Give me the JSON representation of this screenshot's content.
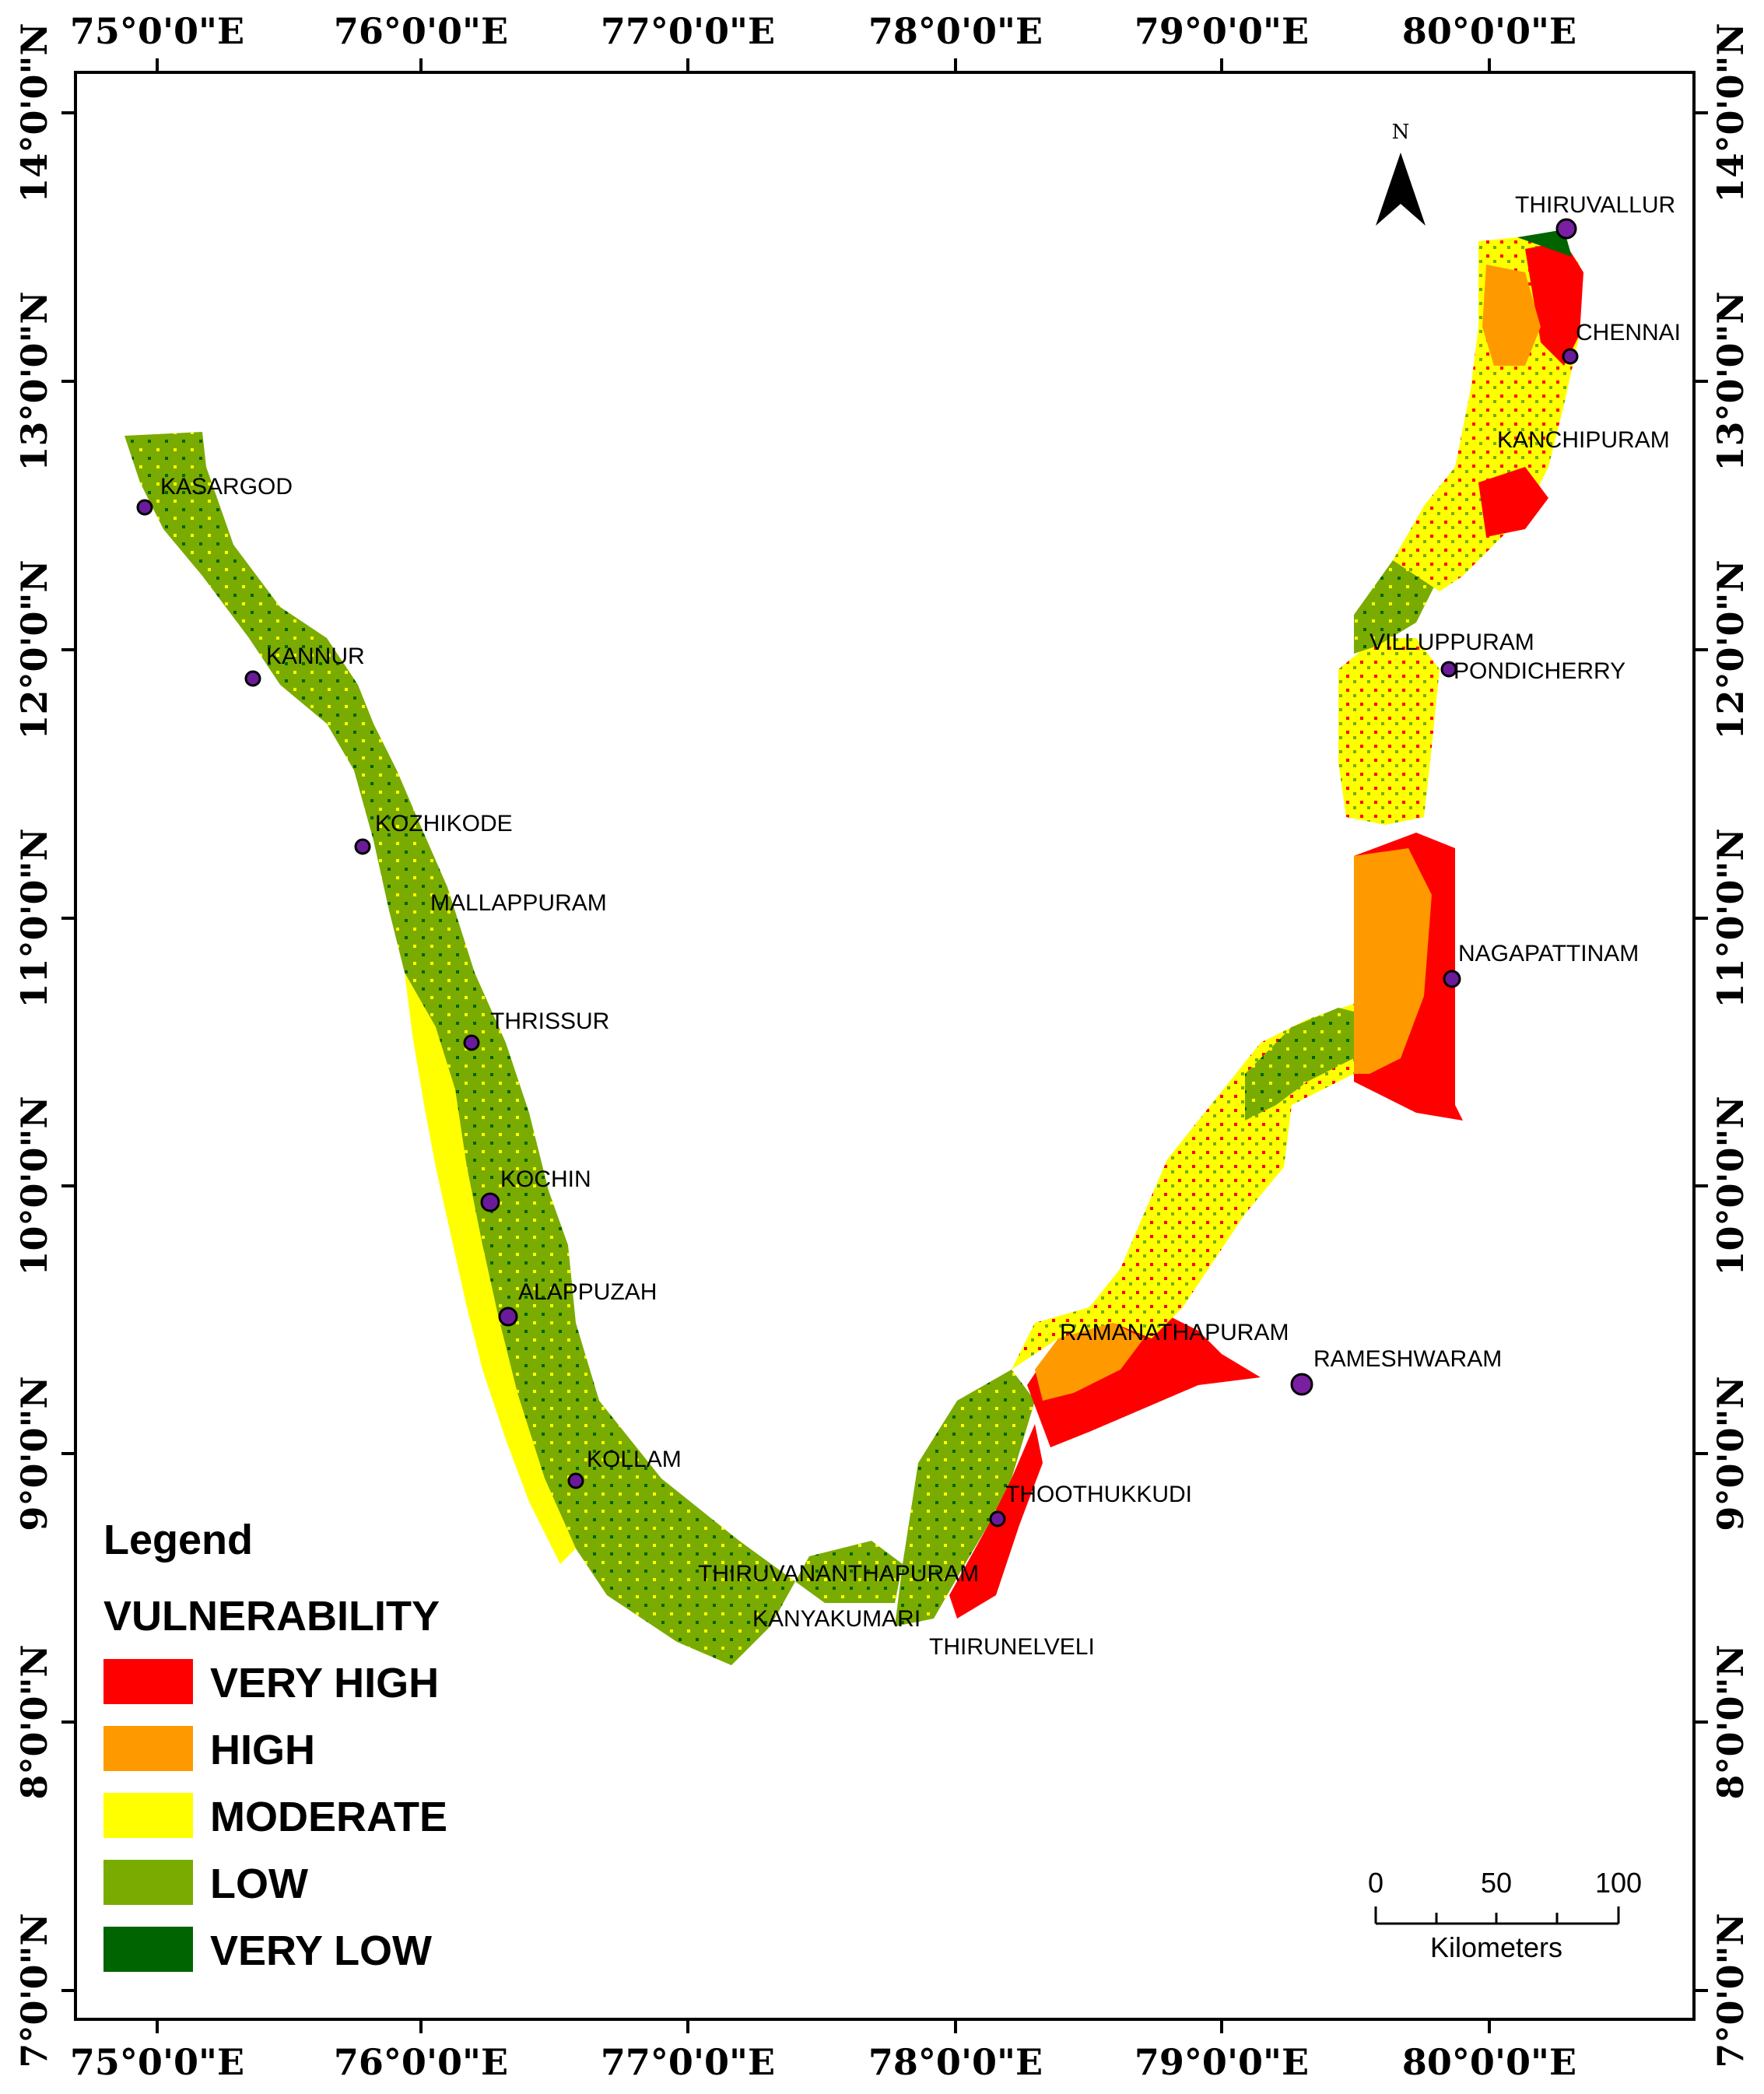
{
  "map": {
    "longitude_labels": [
      "75°0'0\"E",
      "76°0'0\"E",
      "77°0'0\"E",
      "78°0'0\"E",
      "79°0'0\"E",
      "80°0'0\"E"
    ],
    "latitude_labels": [
      "14°0'0\"N",
      "13°0'0\"N",
      "12°0'0\"N",
      "11°0'0\"N",
      "10°0'0\"N",
      "9°0'0\"N",
      "8°0'0\"N",
      "7°0'0\"N"
    ],
    "north_arrow": {
      "label": "N",
      "icon": "north-arrow-icon"
    },
    "cities": [
      {
        "name": "KASARGOD"
      },
      {
        "name": "KANNUR"
      },
      {
        "name": "KOZHIKODE"
      },
      {
        "name": "MALLAPPURAM"
      },
      {
        "name": "THRISSUR"
      },
      {
        "name": "KOCHIN"
      },
      {
        "name": "ALAPPUZAH"
      },
      {
        "name": "KOLLAM"
      },
      {
        "name": "THIRUVANANTHAPURAM"
      },
      {
        "name": "KANYAKUMARI"
      },
      {
        "name": "THIRUNELVELI"
      },
      {
        "name": "THOOTHUKKUDI"
      },
      {
        "name": "RAMANATHAPURAM"
      },
      {
        "name": "RAMESHWARAM"
      },
      {
        "name": "NAGAPATTINAM"
      },
      {
        "name": "VILLUPPURAM"
      },
      {
        "name": "PONDICHERRY"
      },
      {
        "name": "KANCHIPURAM"
      },
      {
        "name": "CHENNAI"
      },
      {
        "name": "THIRUVALLUR"
      }
    ],
    "legend": {
      "title": "Legend",
      "subtitle": "VULNERABILITY",
      "items": [
        {
          "label": "VERY HIGH",
          "color": "#ff0000"
        },
        {
          "label": "HIGH",
          "color": "#ff9900"
        },
        {
          "label": "MODERATE",
          "color": "#ffff00"
        },
        {
          "label": "LOW",
          "color": "#7aab00"
        },
        {
          "label": "VERY LOW",
          "color": "#006400"
        }
      ]
    },
    "scale_bar": {
      "ticks": [
        "0",
        "50",
        "100"
      ],
      "unit": "Kilometers"
    }
  }
}
